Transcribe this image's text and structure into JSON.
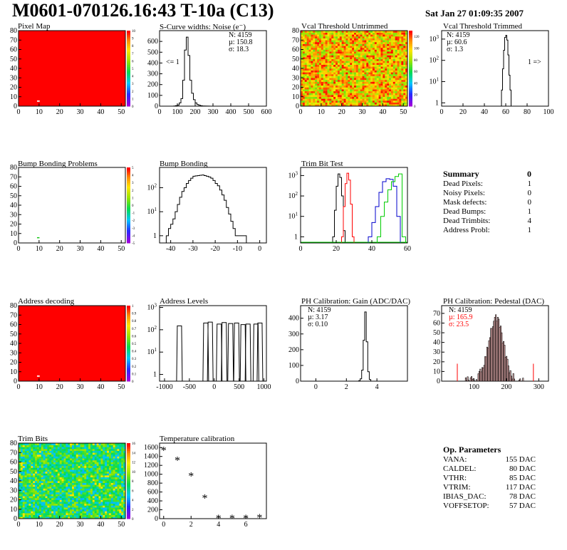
{
  "header": {
    "title": "M0601-070126.16:43 T-10a (C13)",
    "date": "Sat Jan 27 01:09:35 2007"
  },
  "panels": {
    "pixel_map": {
      "title": "Pixel Map",
      "xticks": [
        "0",
        "10",
        "20",
        "30",
        "40",
        "50"
      ],
      "yticks": [
        "0",
        "10",
        "20",
        "30",
        "40",
        "50",
        "60",
        "70",
        "80"
      ],
      "zticks": [
        "0",
        "1",
        "2",
        "3",
        "4",
        "5",
        "6",
        "7",
        "8",
        "9",
        "10"
      ]
    },
    "scurve": {
      "title": "S-Curve widths: Noise (e⁻)",
      "stats": [
        "N: 4159",
        "µ: 150.8",
        "σ: 18.3"
      ],
      "note": "<= 1",
      "xticks": [
        "0",
        "100",
        "200",
        "300",
        "400",
        "500",
        "600"
      ],
      "yticks": [
        "0",
        "100",
        "200",
        "300",
        "400",
        "500",
        "600"
      ]
    },
    "vcal_untrimmed": {
      "title": "Vcal Threshold Untrimmed",
      "xticks": [
        "0",
        "10",
        "20",
        "30",
        "40",
        "50"
      ],
      "yticks": [
        "0",
        "10",
        "20",
        "30",
        "40",
        "50",
        "60",
        "70",
        "80"
      ],
      "zticks": [
        "0",
        "20",
        "40",
        "60",
        "80",
        "100",
        "120"
      ]
    },
    "vcal_trimmed": {
      "title": "Vcal Threshold Trimmed",
      "stats": [
        "N: 4159",
        "µ: 60.6",
        "σ:  1.3"
      ],
      "note": "1 =>",
      "xticks": [
        "0",
        "20",
        "40",
        "60",
        "80",
        "100"
      ]
    },
    "bump_problems": {
      "title": "Bump Bonding Problems",
      "xticks": [
        "0",
        "10",
        "20",
        "30",
        "40",
        "50"
      ],
      "yticks": [
        "0",
        "10",
        "20",
        "30",
        "40",
        "50",
        "60",
        "70",
        "80"
      ],
      "zticks": [
        "-5",
        "-4",
        "-3",
        "-2",
        "-1",
        "0",
        "1",
        "2",
        "3",
        "4",
        "5"
      ]
    },
    "bump_bonding": {
      "title": "Bump Bonding",
      "xticks": [
        "-40",
        "-30",
        "-20",
        "-10",
        "0"
      ]
    },
    "trim_bit": {
      "title": "Trim Bit Test",
      "xticks": [
        "0",
        "20",
        "40",
        "60"
      ]
    },
    "address_decoding": {
      "title": "Address decoding",
      "xticks": [
        "0",
        "10",
        "20",
        "30",
        "40",
        "50"
      ],
      "yticks": [
        "0",
        "10",
        "20",
        "30",
        "40",
        "50",
        "60",
        "70",
        "80"
      ],
      "zticks": [
        "0",
        "0.1",
        "0.2",
        "0.3",
        "0.4",
        "0.5",
        "0.6",
        "0.7",
        "0.8",
        "0.9",
        "1"
      ]
    },
    "address_levels": {
      "title": "Address Levels",
      "xticks": [
        "-1000",
        "-500",
        "0",
        "500",
        "1000"
      ]
    },
    "ph_gain": {
      "title": "PH Calibration: Gain (ADC/DAC)",
      "stats": [
        "N: 4159",
        "µ: 3.17",
        "σ: 0.10"
      ],
      "xticks": [
        "0",
        "2",
        "4"
      ],
      "yticks": [
        "0",
        "100",
        "200",
        "300",
        "400"
      ]
    },
    "ph_pedestal": {
      "title": "PH Calibration: Pedestal (DAC)",
      "stats": [
        "N: 4159",
        "µ: 165.9",
        "σ: 23.5"
      ],
      "xticks": [
        "100",
        "200",
        "300"
      ],
      "yticks": [
        "0",
        "10",
        "20",
        "30",
        "40",
        "50",
        "60",
        "70"
      ]
    },
    "trim_bits": {
      "title": "Trim Bits",
      "xticks": [
        "0",
        "10",
        "20",
        "30",
        "40",
        "50"
      ],
      "yticks": [
        "0",
        "10",
        "20",
        "30",
        "40",
        "50",
        "60",
        "70",
        "80"
      ],
      "zticks": [
        "0",
        "2",
        "4",
        "6",
        "8",
        "10",
        "12",
        "14",
        "16"
      ]
    },
    "temperature": {
      "title": "Temperature calibration",
      "xticks": [
        "0",
        "2",
        "4",
        "6"
      ],
      "yticks": [
        "0",
        "200",
        "400",
        "600",
        "800",
        "1000",
        "1200",
        "1400",
        "1600"
      ]
    }
  },
  "summary": {
    "title": "Summary",
    "total": "0",
    "rows": [
      {
        "label": "Dead Pixels:",
        "value": "1"
      },
      {
        "label": "Noisy Pixels:",
        "value": "0"
      },
      {
        "label": "Mask defects:",
        "value": "0"
      },
      {
        "label": "Dead Bumps:",
        "value": "1"
      },
      {
        "label": "Dead Trimbits:",
        "value": "4"
      },
      {
        "label": "Address Probl:",
        "value": "1"
      }
    ]
  },
  "op_params": {
    "title": "Op. Parameters",
    "rows": [
      {
        "label": "VANA:",
        "value": "155 DAC"
      },
      {
        "label": "CALDEL:",
        "value": "80 DAC"
      },
      {
        "label": "VTHR:",
        "value": "85 DAC"
      },
      {
        "label": "VTRIM:",
        "value": "117 DAC"
      },
      {
        "label": "IBIAS_DAC:",
        "value": "78 DAC"
      },
      {
        "label": "VOFFSETOP:",
        "value": "57 DAC"
      }
    ]
  },
  "colors": {
    "red": "#ff0000",
    "green": "#00cc00",
    "blue": "#0000cc"
  },
  "chart_data": [
    {
      "type": "heatmap",
      "title": "Pixel Map",
      "xlim": [
        0,
        52
      ],
      "ylim": [
        0,
        80
      ],
      "zlim": [
        0,
        10
      ],
      "fill": 10,
      "dead_pixels": [
        {
          "x": 9,
          "y": 5
        }
      ]
    },
    {
      "type": "bar",
      "title": "S-Curve widths: Noise (e⁻)",
      "xlim": [
        0,
        600
      ],
      "ylim": [
        0,
        700
      ],
      "bins": [
        [
          80,
          2
        ],
        [
          90,
          5
        ],
        [
          100,
          10
        ],
        [
          110,
          30
        ],
        [
          120,
          70
        ],
        [
          130,
          240
        ],
        [
          140,
          520
        ],
        [
          150,
          640
        ],
        [
          160,
          470
        ],
        [
          170,
          240
        ],
        [
          180,
          120
        ],
        [
          190,
          60
        ],
        [
          200,
          30
        ],
        [
          210,
          15
        ],
        [
          220,
          8
        ],
        [
          230,
          4
        ],
        [
          240,
          2
        ],
        [
          270,
          1
        ]
      ]
    },
    {
      "type": "heatmap",
      "title": "Vcal Threshold Untrimmed",
      "xlim": [
        0,
        52
      ],
      "ylim": [
        0,
        80
      ],
      "zlim": [
        0,
        130
      ]
    },
    {
      "type": "bar",
      "title": "Vcal Threshold Trimmed",
      "xlim": [
        0,
        100
      ],
      "log": true,
      "bins": [
        [
          56,
          4
        ],
        [
          57,
          40
        ],
        [
          58,
          300
        ],
        [
          59,
          1200
        ],
        [
          60,
          1500
        ],
        [
          61,
          900
        ],
        [
          62,
          180
        ],
        [
          63,
          20
        ],
        [
          64,
          4
        ]
      ]
    },
    {
      "type": "heatmap",
      "title": "Bump Bonding Problems",
      "xlim": [
        0,
        52
      ],
      "ylim": [
        0,
        80
      ],
      "zlim": [
        -5,
        5
      ],
      "dead_bumps": [
        {
          "x": 9,
          "y": 5
        }
      ]
    },
    {
      "type": "bar",
      "title": "Bump Bonding",
      "xlim": [
        -45,
        3
      ],
      "log": true,
      "bins": [
        [
          -42,
          1
        ],
        [
          -41,
          2
        ],
        [
          -40,
          3
        ],
        [
          -39,
          5
        ],
        [
          -38,
          10
        ],
        [
          -37,
          20
        ],
        [
          -36,
          40
        ],
        [
          -35,
          70
        ],
        [
          -34,
          100
        ],
        [
          -33,
          150
        ],
        [
          -32,
          200
        ],
        [
          -31,
          250
        ],
        [
          -30,
          300
        ],
        [
          -29,
          310
        ],
        [
          -28,
          320
        ],
        [
          -27,
          330
        ],
        [
          -26,
          340
        ],
        [
          -25,
          320
        ],
        [
          -24,
          300
        ],
        [
          -23,
          280
        ],
        [
          -22,
          250
        ],
        [
          -21,
          200
        ],
        [
          -20,
          150
        ],
        [
          -19,
          120
        ],
        [
          -18,
          80
        ],
        [
          -17,
          50
        ],
        [
          -16,
          30
        ],
        [
          -15,
          15
        ],
        [
          -14,
          8
        ],
        [
          -13,
          4
        ],
        [
          -12,
          2
        ],
        [
          -11,
          1
        ],
        [
          -7,
          1
        ]
      ]
    },
    {
      "type": "line",
      "title": "Trim Bit Test",
      "xlim": [
        0,
        60
      ],
      "log": true,
      "series": [
        {
          "color": "black",
          "x": [
            18,
            19,
            20,
            21,
            22,
            23,
            24
          ],
          "values": [
            1,
            20,
            300,
            1200,
            800,
            100,
            2
          ]
        },
        {
          "color": "red",
          "x": [
            23,
            24,
            25,
            26,
            27,
            28,
            29
          ],
          "values": [
            1,
            30,
            400,
            1300,
            600,
            40,
            1
          ]
        },
        {
          "color": "blue",
          "x": [
            38,
            40,
            42,
            44,
            46,
            48,
            50,
            52,
            54
          ],
          "values": [
            1,
            5,
            30,
            150,
            500,
            700,
            650,
            300,
            10
          ]
        },
        {
          "color": "green",
          "x": [
            43,
            45,
            47,
            49,
            51,
            53,
            55,
            57
          ],
          "values": [
            1,
            10,
            50,
            200,
            500,
            900,
            1200,
            1
          ]
        }
      ]
    },
    {
      "type": "heatmap",
      "title": "Address decoding",
      "xlim": [
        0,
        52
      ],
      "ylim": [
        0,
        80
      ],
      "zlim": [
        0,
        1
      ],
      "fill": 1,
      "defects": [
        {
          "x": 9,
          "y": 5
        }
      ]
    },
    {
      "type": "bar",
      "title": "Address Levels",
      "xlim": [
        -1100,
        1050
      ],
      "log": true,
      "peaks": [
        [
          -700,
          150
        ],
        [
          -170,
          200
        ],
        [
          -80,
          220
        ],
        [
          100,
          180
        ],
        [
          200,
          210
        ],
        [
          330,
          190
        ],
        [
          450,
          200
        ],
        [
          580,
          170
        ],
        [
          680,
          180
        ],
        [
          840,
          180
        ],
        [
          920,
          200
        ]
      ]
    },
    {
      "type": "bar",
      "title": "PH Calibration: Gain (ADC/DAC)",
      "xlim": [
        -1,
        6
      ],
      "ylim": [
        0,
        480
      ],
      "bins": [
        [
          2.8,
          3
        ],
        [
          2.9,
          15
        ],
        [
          3.0,
          70
        ],
        [
          3.1,
          260
        ],
        [
          3.2,
          440
        ],
        [
          3.3,
          250
        ],
        [
          3.4,
          60
        ],
        [
          3.5,
          10
        ]
      ]
    },
    {
      "type": "bar",
      "title": "PH Calibration: Pedestal (DAC)",
      "xlim": [
        0,
        330
      ],
      "ylim": [
        0,
        78
      ],
      "mean": 165.9,
      "sigma": 23.5
    },
    {
      "type": "heatmap",
      "title": "Trim Bits",
      "xlim": [
        0,
        52
      ],
      "ylim": [
        0,
        80
      ],
      "zlim": [
        0,
        16
      ]
    },
    {
      "type": "scatter",
      "title": "Temperature calibration",
      "xlim": [
        -0.3,
        7.5
      ],
      "ylim": [
        0,
        1700
      ],
      "x": [
        0,
        1,
        2,
        3,
        4,
        5,
        6,
        7
      ],
      "values": [
        1550,
        1320,
        970,
        470,
        20,
        20,
        20,
        30
      ]
    }
  ]
}
